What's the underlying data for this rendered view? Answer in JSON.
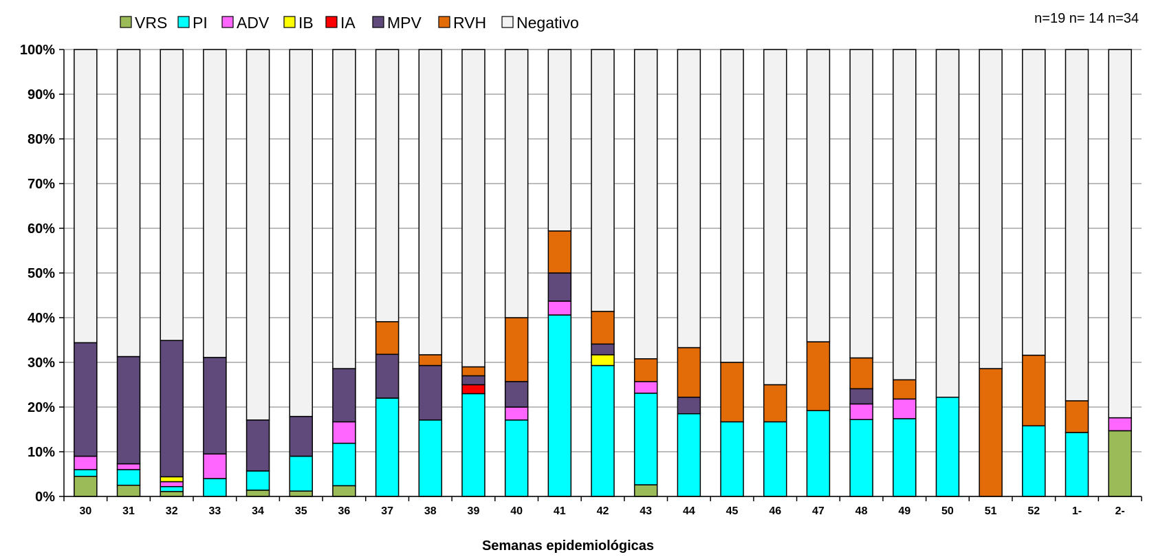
{
  "chart_data": {
    "type": "bar",
    "stacked": true,
    "percent": true,
    "xlabel": "Semanas epidemiológicas",
    "ylabel": "",
    "ylim": [
      0,
      100
    ],
    "y_ticks": [
      "0%",
      "10%",
      "20%",
      "30%",
      "40%",
      "50%",
      "60%",
      "70%",
      "80%",
      "90%",
      "100%"
    ],
    "grid": true,
    "legend_position": "top",
    "annotation": "n=19 n= 14 n=34",
    "categories": [
      "30",
      "31",
      "32",
      "33",
      "34",
      "35",
      "36",
      "37",
      "38",
      "39",
      "40",
      "41",
      "42",
      "43",
      "44",
      "45",
      "46",
      "47",
      "48",
      "49",
      "50",
      "51",
      "52",
      "1-",
      "2-"
    ],
    "series": [
      {
        "name": "VRS",
        "color": "#9BBB59",
        "values": [
          4.5,
          2.5,
          1.1,
          0,
          1.4,
          1.2,
          2.4,
          0,
          0,
          0,
          0,
          0,
          0,
          2.6,
          0,
          0,
          0,
          0,
          0,
          0,
          0,
          0,
          0,
          0,
          14.7
        ]
      },
      {
        "name": "PI",
        "color": "#00FFFF",
        "values": [
          1.5,
          3.5,
          1.1,
          4.0,
          4.3,
          7.8,
          9.5,
          22.0,
          17.1,
          23.0,
          17.1,
          40.6,
          29.3,
          20.5,
          18.5,
          16.7,
          16.7,
          19.2,
          17.2,
          17.4,
          22.2,
          0,
          15.8,
          14.3,
          0
        ]
      },
      {
        "name": "ADV",
        "color": "#FF66FF",
        "values": [
          3.0,
          1.3,
          1.1,
          5.5,
          0,
          0,
          4.8,
          0,
          0,
          0,
          2.9,
          3.1,
          0,
          2.6,
          0,
          0,
          0,
          0,
          3.5,
          4.4,
          0,
          0,
          0,
          0,
          2.9
        ]
      },
      {
        "name": "IB",
        "color": "#FFFF00",
        "values": [
          0,
          0,
          1.1,
          0,
          0,
          0,
          0,
          0,
          0,
          0,
          0,
          0,
          2.4,
          0,
          0,
          0,
          0,
          0,
          0,
          0,
          0,
          0,
          0,
          0,
          0
        ]
      },
      {
        "name": "IA",
        "color": "#FF0000",
        "values": [
          0,
          0,
          0,
          0,
          0,
          0,
          0,
          0,
          0,
          2.0,
          0,
          0,
          0,
          0,
          0,
          0,
          0,
          0,
          0,
          0,
          0,
          0,
          0,
          0,
          0
        ]
      },
      {
        "name": "MPV",
        "color": "#604A7B",
        "values": [
          25.4,
          24.0,
          30.5,
          21.6,
          11.4,
          8.9,
          11.9,
          9.8,
          12.2,
          2.0,
          5.7,
          6.3,
          2.4,
          0,
          3.7,
          0,
          0,
          0,
          3.4,
          0,
          0,
          0,
          0,
          0,
          0
        ]
      },
      {
        "name": "RVH",
        "color": "#E36C09",
        "values": [
          0,
          0,
          0,
          0,
          0,
          0,
          0,
          7.3,
          2.4,
          2.0,
          14.3,
          9.4,
          7.3,
          5.1,
          11.1,
          13.3,
          8.3,
          15.4,
          6.9,
          4.3,
          0,
          28.6,
          15.8,
          7.1,
          0
        ]
      },
      {
        "name": "Negativo",
        "color": "#F2F2F2",
        "values": [
          65.6,
          68.7,
          65.1,
          68.9,
          82.9,
          82.1,
          71.4,
          60.9,
          68.3,
          71.0,
          60.0,
          40.6,
          58.6,
          69.2,
          66.7,
          70.0,
          75.0,
          65.4,
          69.0,
          73.9,
          77.8,
          71.4,
          68.4,
          78.6,
          82.4
        ]
      }
    ]
  }
}
